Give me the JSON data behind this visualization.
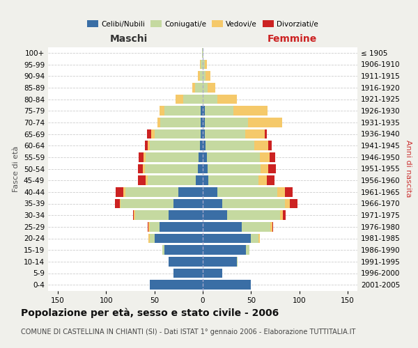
{
  "age_groups": [
    "0-4",
    "5-9",
    "10-14",
    "15-19",
    "20-24",
    "25-29",
    "30-34",
    "35-39",
    "40-44",
    "45-49",
    "50-54",
    "55-59",
    "60-64",
    "65-69",
    "70-74",
    "75-79",
    "80-84",
    "85-89",
    "90-94",
    "95-99",
    "100+"
  ],
  "birth_years": [
    "2001-2005",
    "1996-2000",
    "1991-1995",
    "1986-1990",
    "1981-1985",
    "1976-1980",
    "1971-1975",
    "1966-1970",
    "1961-1965",
    "1956-1960",
    "1951-1955",
    "1946-1950",
    "1941-1945",
    "1936-1940",
    "1931-1935",
    "1926-1930",
    "1921-1925",
    "1916-1920",
    "1911-1915",
    "1906-1910",
    "≤ 1905"
  ],
  "male_celibe": [
    55,
    30,
    35,
    40,
    50,
    45,
    35,
    30,
    25,
    7,
    5,
    4,
    3,
    2,
    2,
    2,
    0,
    0,
    0,
    0,
    0
  ],
  "male_coniugato": [
    0,
    0,
    0,
    2,
    5,
    10,
    35,
    55,
    55,
    50,
    55,
    55,
    52,
    48,
    42,
    38,
    20,
    8,
    3,
    2,
    1
  ],
  "male_vedovo": [
    0,
    0,
    0,
    0,
    1,
    1,
    1,
    1,
    2,
    2,
    2,
    2,
    2,
    3,
    3,
    5,
    8,
    3,
    2,
    1,
    0
  ],
  "male_divorziato": [
    0,
    0,
    0,
    0,
    0,
    1,
    1,
    5,
    8,
    8,
    5,
    5,
    3,
    5,
    0,
    0,
    0,
    0,
    0,
    0,
    0
  ],
  "female_celibe": [
    50,
    20,
    35,
    45,
    50,
    40,
    25,
    20,
    15,
    6,
    5,
    4,
    3,
    2,
    2,
    2,
    0,
    0,
    0,
    0,
    0
  ],
  "female_coniugato": [
    0,
    0,
    1,
    3,
    8,
    30,
    55,
    65,
    62,
    52,
    55,
    55,
    50,
    42,
    45,
    30,
    15,
    5,
    3,
    2,
    1
  ],
  "female_vedovo": [
    0,
    0,
    0,
    0,
    1,
    2,
    3,
    5,
    8,
    8,
    8,
    10,
    15,
    20,
    35,
    35,
    20,
    8,
    5,
    2,
    0
  ],
  "female_divorziato": [
    0,
    0,
    0,
    0,
    0,
    1,
    3,
    8,
    8,
    8,
    8,
    6,
    3,
    2,
    0,
    0,
    0,
    0,
    0,
    0,
    0
  ],
  "color_celibe": "#3a6ea5",
  "color_coniugato": "#c5d9a0",
  "color_vedovo": "#f5c96a",
  "color_divorziato": "#cc2222",
  "title": "Popolazione per età, sesso e stato civile - 2006",
  "subtitle": "COMUNE DI CASTELLINA IN CHIANTI (SI) - Dati ISTAT 1° gennaio 2006 - Elaborazione TUTTITALIA.IT",
  "xlabel_left": "Maschi",
  "xlabel_right": "Femmine",
  "ylabel_left": "Fasce di età",
  "ylabel_right": "Anni di nascita",
  "xlim": 160,
  "xticks": [
    -150,
    -100,
    -50,
    0,
    50,
    100,
    150
  ],
  "bg_color": "#f0f0eb",
  "plot_bg": "#ffffff",
  "grid_color": "#cccccc",
  "legend_marker_size": 10,
  "title_fontsize": 10,
  "subtitle_fontsize": 7,
  "axis_fontsize": 8,
  "tick_fontsize": 7.5,
  "header_fontsize": 10
}
